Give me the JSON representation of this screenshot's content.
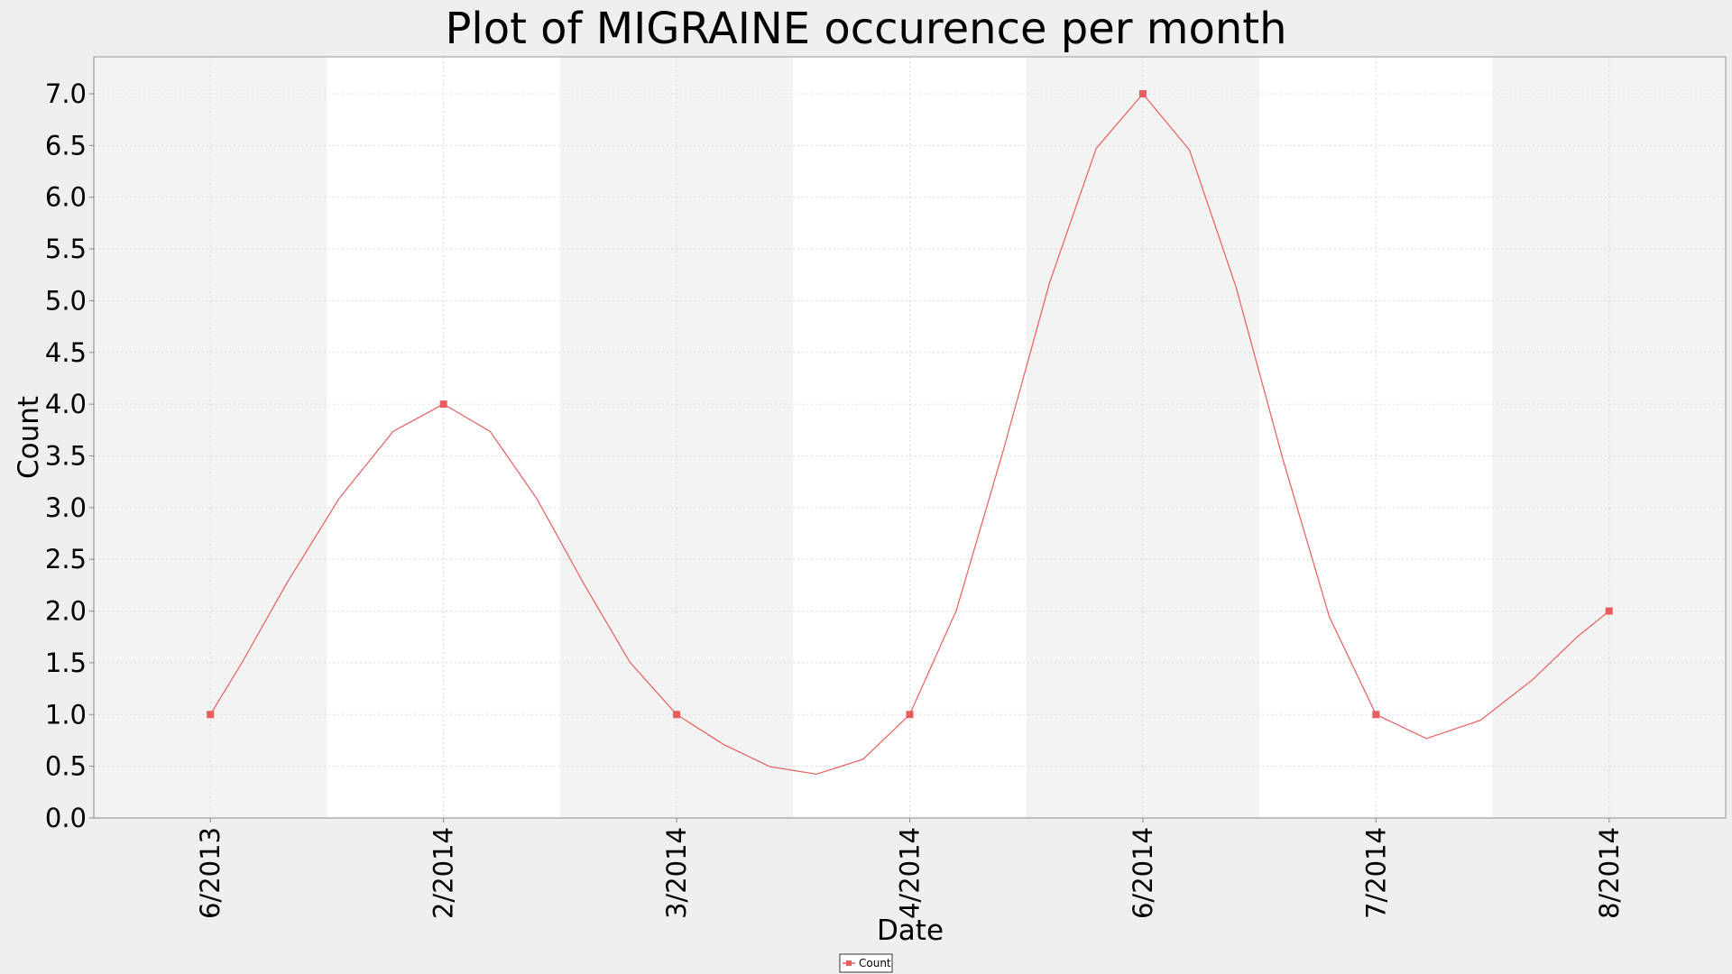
{
  "chart_data": {
    "type": "line",
    "title": "Plot of MIGRAINE occurence per month",
    "xlabel": "Date",
    "ylabel": "Count",
    "categories": [
      "6/2013",
      "2/2014",
      "3/2014",
      "4/2014",
      "6/2014",
      "7/2014",
      "8/2014"
    ],
    "series": [
      {
        "name": "Count",
        "values": [
          1,
          4,
          1,
          1,
          7,
          1,
          2
        ],
        "color": "#e85c5c"
      }
    ],
    "ylim": [
      0,
      7.0
    ],
    "yticks": [
      "0.0",
      "0.5",
      "1.0",
      "1.5",
      "2.0",
      "2.5",
      "3.0",
      "3.5",
      "4.0",
      "4.5",
      "5.0",
      "5.5",
      "6.0",
      "6.5",
      "7.0"
    ],
    "grid": true,
    "smooth": true,
    "legend": "bottom-center",
    "colors": {
      "page_background": "#efefef",
      "band_shaded": "#f3f3f3",
      "band_plain": "#ffffff",
      "gridline": "#d8d8d8",
      "axis": "#888888"
    }
  }
}
